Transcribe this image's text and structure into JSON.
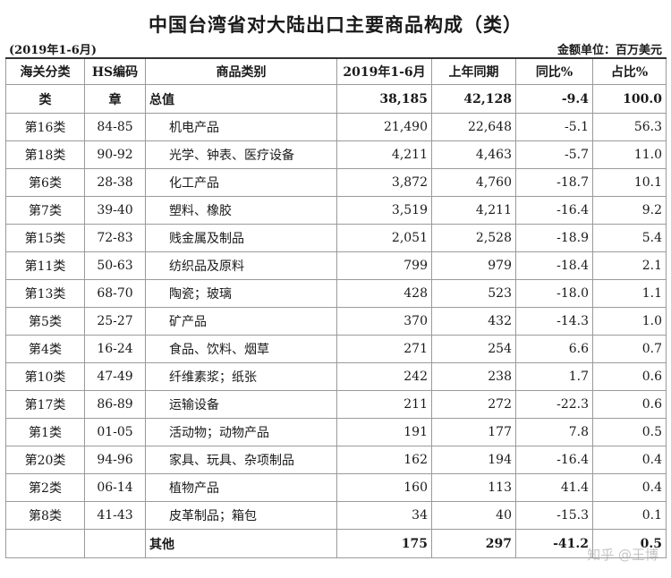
{
  "title": "中国台湾省对大陆出口主要商品构成（类）",
  "period_note": "(2019年1-6月)",
  "unit_note": "金额单位：百万美元",
  "headers": [
    "海关分类",
    "HS编码",
    "商品类别",
    "2019年1-6月",
    "上年同期",
    "同比%",
    "占比%"
  ],
  "total_row": [
    "类",
    "章",
    "总值",
    "38,185",
    "42,128",
    "-9.4",
    "100.0"
  ],
  "rows": [
    [
      "第16类",
      "84-85",
      "机电产品",
      "21,490",
      "22,648",
      "-5.1",
      "56.3"
    ],
    [
      "第18类",
      "90-92",
      "光学、钟表、医疗设备",
      "4,211",
      "4,463",
      "-5.7",
      "11.0"
    ],
    [
      "第6类",
      "28-38",
      "化工产品",
      "3,872",
      "4,760",
      "-18.7",
      "10.1"
    ],
    [
      "第7类",
      "39-40",
      "塑料、橡胶",
      "3,519",
      "4,211",
      "-16.4",
      "9.2"
    ],
    [
      "第15类",
      "72-83",
      "贱金属及制品",
      "2,051",
      "2,528",
      "-18.9",
      "5.4"
    ],
    [
      "第11类",
      "50-63",
      "纺织品及原料",
      "799",
      "979",
      "-18.4",
      "2.1"
    ],
    [
      "第13类",
      "68-70",
      "陶瓷；玻璃",
      "428",
      "523",
      "-18.0",
      "1.1"
    ],
    [
      "第5类",
      "25-27",
      "矿产品",
      "370",
      "432",
      "-14.3",
      "1.0"
    ],
    [
      "第4类",
      "16-24",
      "食品、饮料、烟草",
      "271",
      "254",
      "6.6",
      "0.7"
    ],
    [
      "第10类",
      "47-49",
      "纤维素浆；纸张",
      "242",
      "238",
      "1.7",
      "0.6"
    ],
    [
      "第17类",
      "86-89",
      "运输设备",
      "211",
      "272",
      "-22.3",
      "0.6"
    ],
    [
      "第1类",
      "01-05",
      "活动物；动物产品",
      "191",
      "177",
      "7.8",
      "0.5"
    ],
    [
      "第20类",
      "94-96",
      "家具、玩具、杂项制品",
      "162",
      "194",
      "-16.4",
      "0.4"
    ],
    [
      "第2类",
      "06-14",
      "植物产品",
      "160",
      "113",
      "41.4",
      "0.4"
    ],
    [
      "第8类",
      "41-43",
      "皮革制品；箱包",
      "34",
      "40",
      "-15.3",
      "0.1"
    ]
  ],
  "other_row": [
    "",
    "",
    "其他",
    "175",
    "297",
    "-41.2",
    "0.5"
  ],
  "watermark": "知乎 @王博"
}
